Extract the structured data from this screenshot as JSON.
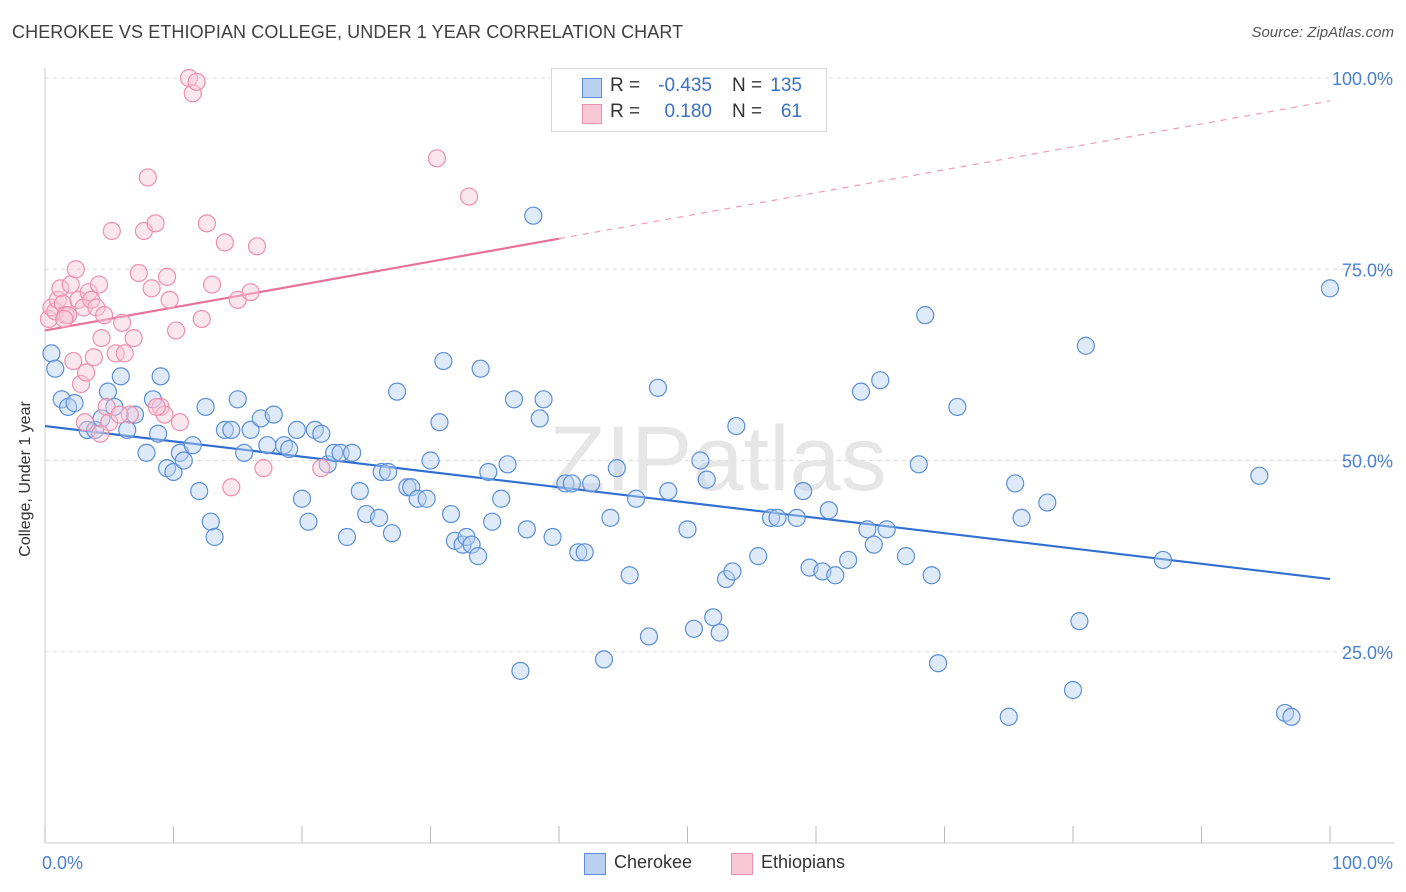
{
  "title": "CHEROKEE VS ETHIOPIAN COLLEGE, UNDER 1 YEAR CORRELATION CHART",
  "source": "Source: ZipAtlas.com",
  "watermark": "ZIPatlas",
  "colors": {
    "blue": "#5b8fd6",
    "blue_fill": "#b9d0f1",
    "blue_line": "#2f6fd0",
    "pink": "#ef8fae",
    "pink_fill": "#f7c7d6",
    "pink_line": "#e8719a",
    "axis_text": "#4a7fd0",
    "grid": "#dcdcdc"
  },
  "legend": {
    "rows": [
      {
        "r_label": "R =",
        "r_value": "-0.435",
        "n_label": "N =",
        "n_value": "135"
      },
      {
        "r_label": "R =",
        "r_value": "0.180",
        "n_label": "N =",
        "n_value": "61"
      }
    ]
  },
  "bottom_legend": {
    "cherokee": "Cherokee",
    "ethiopians": "Ethiopians"
  },
  "chart_data": {
    "type": "scatter",
    "title": "CHEROKEE VS ETHIOPIAN COLLEGE, UNDER 1 YEAR CORRELATION CHART",
    "xlabel": "",
    "ylabel": "College, Under 1 year",
    "xlim": [
      0,
      100
    ],
    "ylim": [
      0,
      100
    ],
    "x_tick_labels": [
      "0.0%",
      "100.0%"
    ],
    "y_tick_labels": [
      "25.0%",
      "50.0%",
      "75.0%",
      "100.0%"
    ],
    "y_ticks": [
      25,
      50,
      75,
      100
    ],
    "series": [
      {
        "name": "Cherokee",
        "r": -0.435,
        "n": 135,
        "trend": {
          "x0": 0,
          "y0": 54.5,
          "x1": 100,
          "y1": 34.5
        },
        "points": [
          [
            0.5,
            64
          ],
          [
            0.8,
            62
          ],
          [
            1.3,
            58
          ],
          [
            1.8,
            57
          ],
          [
            2.3,
            57.5
          ],
          [
            3.3,
            54
          ],
          [
            3.9,
            54
          ],
          [
            4.4,
            55.5
          ],
          [
            4.9,
            59
          ],
          [
            5.4,
            57
          ],
          [
            5.9,
            61
          ],
          [
            6.4,
            54
          ],
          [
            7.0,
            56
          ],
          [
            7.9,
            51
          ],
          [
            8.4,
            58
          ],
          [
            8.8,
            53.5
          ],
          [
            9.0,
            61
          ],
          [
            9.5,
            49
          ],
          [
            10.0,
            48.5
          ],
          [
            10.5,
            51
          ],
          [
            10.8,
            50
          ],
          [
            11.5,
            52
          ],
          [
            12.0,
            46
          ],
          [
            12.5,
            57
          ],
          [
            12.9,
            42
          ],
          [
            13.2,
            40
          ],
          [
            14.0,
            54
          ],
          [
            14.5,
            54
          ],
          [
            15.0,
            58
          ],
          [
            15.5,
            51
          ],
          [
            16.0,
            54
          ],
          [
            16.8,
            55.5
          ],
          [
            17.3,
            52
          ],
          [
            17.8,
            56
          ],
          [
            18.6,
            52
          ],
          [
            19.0,
            51.5
          ],
          [
            19.6,
            54
          ],
          [
            20.0,
            45
          ],
          [
            20.5,
            42
          ],
          [
            21.0,
            54
          ],
          [
            21.5,
            53.5
          ],
          [
            22.0,
            49.5
          ],
          [
            22.5,
            51
          ],
          [
            23.0,
            51
          ],
          [
            23.5,
            40
          ],
          [
            23.9,
            51
          ],
          [
            24.5,
            46
          ],
          [
            25.0,
            43
          ],
          [
            26.0,
            42.5
          ],
          [
            26.2,
            48.5
          ],
          [
            26.7,
            48.5
          ],
          [
            27.0,
            40.5
          ],
          [
            27.4,
            59
          ],
          [
            28.2,
            46.5
          ],
          [
            28.5,
            46.5
          ],
          [
            29.0,
            45
          ],
          [
            29.7,
            45
          ],
          [
            30.0,
            50
          ],
          [
            30.7,
            55
          ],
          [
            31.0,
            63
          ],
          [
            31.6,
            43
          ],
          [
            31.9,
            39.5
          ],
          [
            32.5,
            39
          ],
          [
            32.8,
            40
          ],
          [
            33.2,
            39
          ],
          [
            33.7,
            37.5
          ],
          [
            33.9,
            62
          ],
          [
            34.5,
            48.5
          ],
          [
            34.8,
            42
          ],
          [
            35.5,
            45
          ],
          [
            36.0,
            49.5
          ],
          [
            36.5,
            58
          ],
          [
            37.0,
            22.5
          ],
          [
            37.5,
            41
          ],
          [
            38.5,
            55.5
          ],
          [
            38.8,
            58
          ],
          [
            39.5,
            40
          ],
          [
            40.5,
            47
          ],
          [
            41.0,
            47
          ],
          [
            41.5,
            38
          ],
          [
            42.0,
            38
          ],
          [
            42.5,
            47
          ],
          [
            43.5,
            24
          ],
          [
            44.0,
            42.5
          ],
          [
            44.5,
            49
          ],
          [
            45.5,
            35
          ],
          [
            46.0,
            45
          ],
          [
            47.0,
            27
          ],
          [
            47.7,
            59.5
          ],
          [
            48.5,
            46
          ],
          [
            50.0,
            41
          ],
          [
            50.5,
            28
          ],
          [
            51.0,
            50
          ],
          [
            51.5,
            47.5
          ],
          [
            52.0,
            29.5
          ],
          [
            52.5,
            27.5
          ],
          [
            53.0,
            34.5
          ],
          [
            53.5,
            35.5
          ],
          [
            53.8,
            54.5
          ],
          [
            55.5,
            37.5
          ],
          [
            56.5,
            42.5
          ],
          [
            57.0,
            42.5
          ],
          [
            58.5,
            42.5
          ],
          [
            59.0,
            46
          ],
          [
            59.5,
            36
          ],
          [
            60.5,
            35.5
          ],
          [
            61.0,
            43.5
          ],
          [
            61.5,
            35
          ],
          [
            62.5,
            37
          ],
          [
            63.5,
            59
          ],
          [
            64.0,
            41
          ],
          [
            64.5,
            39
          ],
          [
            65.0,
            60.5
          ],
          [
            65.5,
            41
          ],
          [
            67.0,
            37.5
          ],
          [
            68.0,
            49.5
          ],
          [
            68.5,
            69
          ],
          [
            69.0,
            35
          ],
          [
            69.5,
            23.5
          ],
          [
            71.0,
            57
          ],
          [
            75.0,
            16.5
          ],
          [
            75.5,
            47
          ],
          [
            76.0,
            42.5
          ],
          [
            78.0,
            44.5
          ],
          [
            80.0,
            20
          ],
          [
            80.5,
            29
          ],
          [
            81.0,
            65
          ],
          [
            87.0,
            37
          ],
          [
            94.5,
            48
          ],
          [
            96.5,
            17
          ],
          [
            97.0,
            16.5
          ],
          [
            100.0,
            72.5
          ],
          [
            38.0,
            82
          ]
        ]
      },
      {
        "name": "Ethiopians",
        "r": 0.18,
        "n": 61,
        "trend": {
          "x0": 0,
          "y0": 67,
          "x1": 40,
          "y1": 79,
          "dashed_to": {
            "x": 100,
            "y": 97
          }
        },
        "points": [
          [
            0.3,
            68.5
          ],
          [
            0.5,
            70
          ],
          [
            0.8,
            69.5
          ],
          [
            1.0,
            71
          ],
          [
            1.2,
            72.5
          ],
          [
            1.4,
            70.5
          ],
          [
            1.6,
            69
          ],
          [
            1.8,
            69
          ],
          [
            2.0,
            73
          ],
          [
            2.2,
            63
          ],
          [
            2.4,
            75
          ],
          [
            2.6,
            71
          ],
          [
            2.8,
            60
          ],
          [
            3.0,
            70
          ],
          [
            3.2,
            61.5
          ],
          [
            3.4,
            72
          ],
          [
            3.6,
            71
          ],
          [
            3.8,
            63.5
          ],
          [
            4.0,
            70
          ],
          [
            4.2,
            73
          ],
          [
            4.4,
            66
          ],
          [
            4.6,
            69
          ],
          [
            4.8,
            57
          ],
          [
            5.0,
            55
          ],
          [
            5.2,
            80
          ],
          [
            5.5,
            64
          ],
          [
            6.0,
            68
          ],
          [
            6.2,
            64
          ],
          [
            6.6,
            56
          ],
          [
            6.9,
            66
          ],
          [
            7.3,
            74.5
          ],
          [
            7.7,
            80
          ],
          [
            8.0,
            87
          ],
          [
            8.3,
            72.5
          ],
          [
            8.6,
            81
          ],
          [
            9.0,
            57
          ],
          [
            9.3,
            56
          ],
          [
            9.5,
            74
          ],
          [
            9.7,
            71
          ],
          [
            10.2,
            67
          ],
          [
            10.5,
            55
          ],
          [
            11.2,
            100
          ],
          [
            11.5,
            98
          ],
          [
            11.8,
            99.5
          ],
          [
            12.2,
            68.5
          ],
          [
            12.6,
            81
          ],
          [
            13.0,
            73
          ],
          [
            14.0,
            78.5
          ],
          [
            14.5,
            46.5
          ],
          [
            15.0,
            71
          ],
          [
            16.0,
            72
          ],
          [
            16.5,
            78
          ],
          [
            17.0,
            49
          ],
          [
            21.5,
            49
          ],
          [
            30.5,
            89.5
          ],
          [
            33.0,
            84.5
          ],
          [
            8.7,
            57
          ],
          [
            5.8,
            56
          ],
          [
            3.1,
            55
          ],
          [
            4.3,
            53.5
          ],
          [
            1.5,
            68.5
          ]
        ]
      }
    ]
  }
}
